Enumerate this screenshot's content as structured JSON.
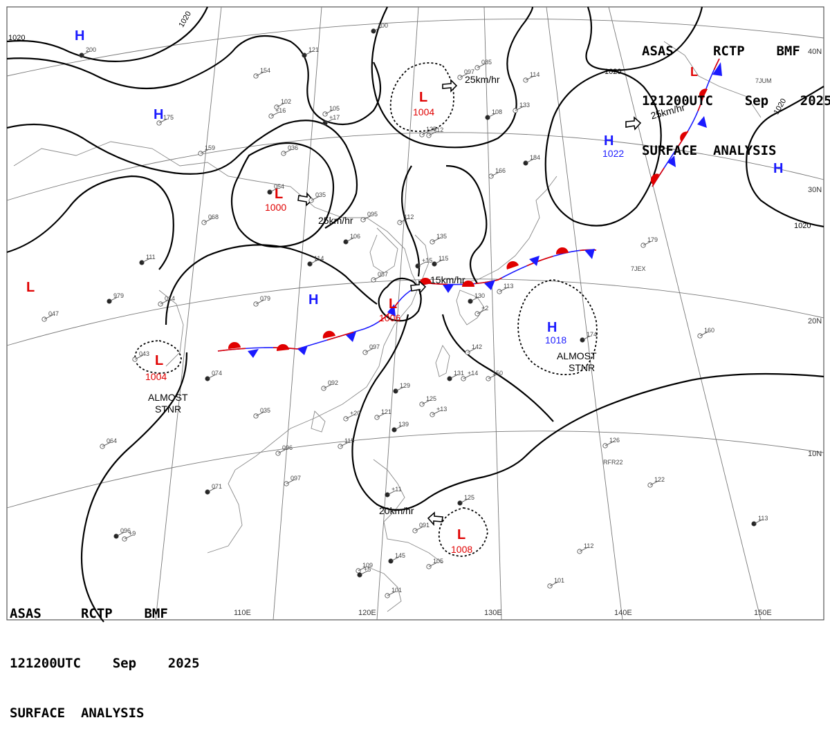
{
  "header": {
    "line1": "ASAS     RCTP    BMF",
    "line2": "121200UTC    Sep    2025",
    "line3": "SURFACE  ANALYSIS"
  },
  "isobar_labels": [
    "1020",
    "1020",
    "1020",
    "1020",
    "1020"
  ],
  "pressure_centers": [
    {
      "type": "H",
      "value": ""
    },
    {
      "type": "H",
      "value": ""
    },
    {
      "type": "L",
      "value": "1000"
    },
    {
      "type": "L",
      "value": "1004"
    },
    {
      "type": "H",
      "value": "1022"
    },
    {
      "type": "H",
      "value": ""
    },
    {
      "type": "L",
      "value": ""
    },
    {
      "type": "L",
      "value": ""
    },
    {
      "type": "H",
      "value": ""
    },
    {
      "type": "L",
      "value": "1006"
    },
    {
      "type": "L",
      "value": "1004"
    },
    {
      "type": "H",
      "value": "1018"
    },
    {
      "type": "L",
      "value": "1008"
    }
  ],
  "movement_labels": [
    "25km/hr",
    "25km/hr",
    "25km/hr",
    "15km/hr",
    "20km/hr"
  ],
  "notes": [
    "ALMOST",
    "STNR",
    "ALMOST",
    "STNR"
  ],
  "latitude_labels": [
    "40N",
    "30N",
    "20N",
    "10N"
  ],
  "longitude_labels": [
    "110E",
    "120E",
    "130E",
    "140E",
    "150E"
  ],
  "station_codes": [
    "7JUM",
    "7JEX",
    "RFR22"
  ],
  "station_values": [
    "200",
    "175",
    "154",
    "121",
    "102",
    "105",
    "100",
    "159",
    "036",
    "054",
    "035",
    "068",
    "111",
    "014",
    "079",
    "114",
    "095",
    "112",
    "106",
    "135",
    "087",
    "115",
    "097",
    "092",
    "129",
    "125",
    "121",
    "139",
    "115",
    "096",
    "071",
    "097",
    "064",
    "979",
    "047",
    "043",
    "074",
    "035",
    "142",
    "131",
    "150",
    "133",
    "108",
    "125",
    "166",
    "184",
    "179",
    "160",
    "174",
    "126",
    "122",
    "113",
    "112",
    "109",
    "145",
    "105",
    "101",
    "096",
    "085",
    "097",
    "130",
    "113",
    "101",
    "125",
    "091",
    "114",
    "+17",
    "+12",
    "+16",
    "+15",
    "+9",
    "+14",
    "+11",
    "+13",
    "+20",
    "+5",
    "+2"
  ]
}
